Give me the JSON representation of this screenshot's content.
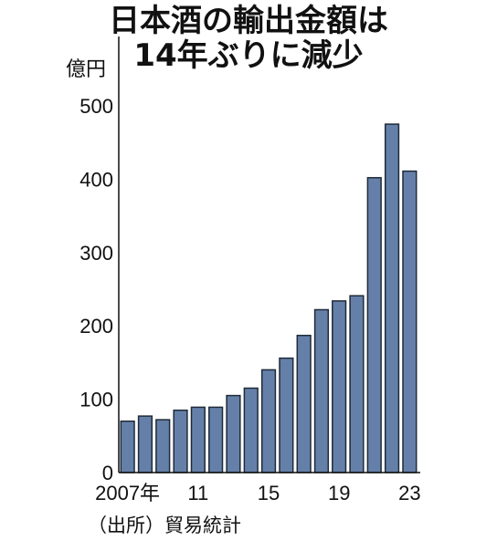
{
  "header": {
    "title_line1": "日本酒の輸出金額は",
    "title_line2": "14年ぶりに減少",
    "unit": "億円"
  },
  "footer": {
    "source": "（出所）貿易統計"
  },
  "chart_data": {
    "type": "bar",
    "title": "日本酒の輸出金額は14年ぶりに減少",
    "ylabel": "億円",
    "xlabel": "",
    "x": [
      "2007",
      "2008",
      "2009",
      "2010",
      "2011",
      "2012",
      "2013",
      "2014",
      "2015",
      "2016",
      "2017",
      "2018",
      "2019",
      "2020",
      "2021",
      "2022",
      "2023"
    ],
    "values": [
      70,
      77,
      72,
      85,
      89,
      89,
      105,
      115,
      140,
      156,
      187,
      222,
      234,
      241,
      402,
      475,
      411
    ],
    "x_tick_labels": [
      {
        "index": 0,
        "label": "2007年"
      },
      {
        "index": 4,
        "label": "11"
      },
      {
        "index": 8,
        "label": "15"
      },
      {
        "index": 12,
        "label": "19"
      },
      {
        "index": 16,
        "label": "23"
      }
    ],
    "y_ticks": [
      0,
      100,
      200,
      300,
      400,
      500
    ],
    "ylim": [
      0,
      500
    ],
    "bar_color": "#6580a8",
    "bar_edge_color": "#1f2a3a",
    "grid": false
  }
}
